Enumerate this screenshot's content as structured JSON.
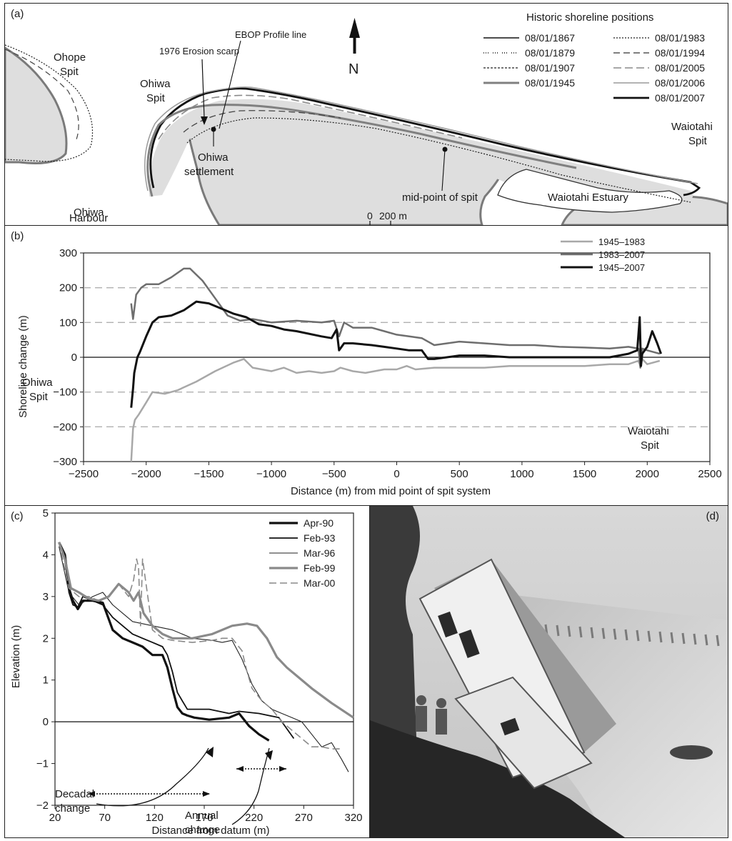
{
  "panel_a": {
    "label": "(a)",
    "legend_title": "Historic shoreline positions",
    "legend_items": [
      {
        "date": "08/01/1867",
        "style": "thin-solid"
      },
      {
        "date": "08/01/1879",
        "style": "dash-dot-dot"
      },
      {
        "date": "08/01/1907",
        "style": "fine-dashed"
      },
      {
        "date": "08/01/1945",
        "style": "thick-grey"
      },
      {
        "date": "08/01/1983",
        "style": "dotted"
      },
      {
        "date": "08/01/1994",
        "style": "long-dash"
      },
      {
        "date": "08/01/2005",
        "style": "grey-long-dash"
      },
      {
        "date": "08/01/2006",
        "style": "thin-grey"
      },
      {
        "date": "08/01/2007",
        "style": "thick-black"
      }
    ],
    "north_label": "N",
    "place_labels": {
      "ohope_1": "Ohope",
      "ohope_2": "Spit",
      "ohiwa_spit_1": "Ohiwa",
      "ohiwa_spit_2": "Spit",
      "ohiwa_settlement_1": "Ohiwa",
      "ohiwa_settlement_2": "settlement",
      "ohiwa_harbour_1": "Ohiwa",
      "ohiwa_harbour_2": "Harbour",
      "waiotahi_spit_1": "Waiotahi",
      "waiotahi_spit_2": "Spit",
      "waiotahi_estuary": "Waiotahi Estuary",
      "erosion_scarp": "1976 Erosion scarp",
      "ebop_profile": "EBOP Profile line",
      "mid_point": "mid-point of spit"
    },
    "scale_bar": {
      "zero": "0",
      "label": "200 m"
    }
  },
  "panel_b": {
    "label": "(b)",
    "annot_ohiwa_1": "Ohiwa",
    "annot_ohiwa_2": "Spit",
    "annot_waiotahi_1": "Waiotahi",
    "annot_waiotahi_2": "Spit"
  },
  "panel_c": {
    "label": "(c)",
    "annot_decadal_1": "Decadal",
    "annot_decadal_2": "change",
    "annot_annual_1": "Annual",
    "annot_annual_2": "change"
  },
  "panel_d": {
    "label": "(d)"
  },
  "chart_data": [
    {
      "type": "line",
      "xlabel": "Distance (m) from mid point of spit system",
      "ylabel": "Shoreline change (m)",
      "xlim": [
        -2500,
        2500
      ],
      "ylim": [
        -300,
        300
      ],
      "xticks": [
        -2500,
        -2000,
        -1500,
        -1000,
        -500,
        0,
        500,
        1000,
        1500,
        2000,
        2500
      ],
      "yticks": [
        -300,
        -200,
        -100,
        0,
        100,
        200,
        300
      ],
      "dashed_gridlines_y": [
        -200,
        -100,
        100,
        200
      ],
      "legend_position": "top-right",
      "series": [
        {
          "name": "1945–1983",
          "color": "#a8a8a8",
          "width": 2.5,
          "x": [
            -2120,
            -2105,
            -2090,
            -2060,
            -2000,
            -1950,
            -1850,
            -1750,
            -1600,
            -1450,
            -1300,
            -1220,
            -1150,
            -1000,
            -900,
            -800,
            -700,
            -600,
            -500,
            -450,
            -350,
            -250,
            -100,
            0,
            80,
            150,
            300,
            500,
            700,
            900,
            1100,
            1300,
            1500,
            1700,
            1850,
            1930,
            1945,
            1960,
            2000,
            2050,
            2100
          ],
          "y": [
            -300,
            -205,
            -180,
            -165,
            -130,
            -100,
            -105,
            -95,
            -70,
            -40,
            -15,
            -5,
            -30,
            -40,
            -30,
            -45,
            -40,
            -45,
            -40,
            -30,
            -40,
            -45,
            -35,
            -35,
            -25,
            -35,
            -30,
            -30,
            -30,
            -25,
            -25,
            -25,
            -25,
            -20,
            -20,
            -10,
            -25,
            -5,
            -20,
            -15,
            -10
          ]
        },
        {
          "name": "1983–2007",
          "color": "#6e6e6e",
          "width": 2.5,
          "x": [
            -2120,
            -2105,
            -2080,
            -2040,
            -2000,
            -1900,
            -1800,
            -1700,
            -1650,
            -1550,
            -1450,
            -1350,
            -1250,
            -1150,
            -1000,
            -800,
            -600,
            -500,
            -460,
            -420,
            -350,
            -200,
            -100,
            0,
            100,
            200,
            300,
            500,
            700,
            900,
            1100,
            1300,
            1500,
            1700,
            1850,
            1930,
            1945,
            1960,
            2000,
            2050,
            2100
          ],
          "y": [
            155,
            110,
            180,
            200,
            210,
            210,
            230,
            255,
            255,
            220,
            170,
            120,
            105,
            110,
            100,
            105,
            100,
            105,
            60,
            100,
            85,
            85,
            75,
            65,
            60,
            55,
            35,
            45,
            40,
            35,
            35,
            30,
            28,
            25,
            30,
            25,
            -30,
            25,
            20,
            15,
            10
          ]
        },
        {
          "name": "1945–2007",
          "color": "#111111",
          "width": 3,
          "x": [
            -2120,
            -2105,
            -2095,
            -2070,
            -2050,
            -2000,
            -1950,
            -1900,
            -1800,
            -1700,
            -1600,
            -1500,
            -1400,
            -1300,
            -1200,
            -1100,
            -1000,
            -900,
            -800,
            -600,
            -520,
            -480,
            -460,
            -420,
            -350,
            -200,
            -100,
            0,
            100,
            200,
            250,
            300,
            500,
            700,
            900,
            1100,
            1300,
            1500,
            1700,
            1850,
            1920,
            1940,
            1950,
            1960,
            2000,
            2040,
            2080,
            2110
          ],
          "y": [
            -145,
            -90,
            -45,
            0,
            15,
            60,
            100,
            115,
            120,
            135,
            160,
            155,
            140,
            125,
            115,
            95,
            90,
            80,
            75,
            60,
            55,
            80,
            20,
            40,
            40,
            35,
            30,
            25,
            20,
            20,
            -5,
            -5,
            5,
            5,
            0,
            0,
            0,
            0,
            0,
            10,
            20,
            115,
            -25,
            10,
            30,
            75,
            40,
            10
          ]
        }
      ],
      "annotations": [
        "Ohiwa Spit",
        "Waiotahi Spit"
      ]
    },
    {
      "type": "line",
      "xlabel": "Distance from datum (m)",
      "ylabel": "Elevation (m)",
      "xlim": [
        20,
        320
      ],
      "ylim": [
        -2,
        5
      ],
      "xticks": [
        20,
        70,
        120,
        170,
        220,
        270,
        320
      ],
      "yticks": [
        -2,
        -1,
        0,
        1,
        2,
        3,
        4,
        5
      ],
      "legend_position": "top-right",
      "series": [
        {
          "name": "Apr-90",
          "color": "#111111",
          "width": 3.2,
          "dash": "",
          "x": [
            24,
            30,
            34,
            38,
            43,
            48,
            58,
            68,
            78,
            88,
            98,
            108,
            118,
            128,
            133,
            138,
            143,
            148,
            153,
            160,
            175,
            195,
            205,
            215,
            225,
            235
          ],
          "y": [
            4.3,
            4.0,
            3.2,
            2.9,
            2.7,
            2.9,
            2.9,
            2.85,
            2.2,
            2.0,
            1.9,
            1.8,
            1.6,
            1.6,
            1.3,
            0.8,
            0.35,
            0.2,
            0.15,
            0.1,
            0.05,
            0.1,
            0.2,
            -0.1,
            -0.3,
            -0.45
          ]
        },
        {
          "name": "Feb-93",
          "color": "#111111",
          "width": 1.8,
          "dash": "",
          "x": [
            24,
            30,
            34,
            38,
            43,
            48,
            58,
            68,
            78,
            88,
            98,
            108,
            118,
            128,
            133,
            138,
            143,
            148,
            153,
            160,
            175,
            195,
            205,
            225,
            245,
            260
          ],
          "y": [
            4.3,
            4.0,
            3.1,
            2.8,
            2.75,
            3.0,
            2.9,
            2.8,
            2.5,
            2.3,
            2.1,
            2.0,
            1.9,
            1.8,
            1.6,
            1.2,
            0.7,
            0.5,
            0.3,
            0.3,
            0.3,
            0.2,
            0.25,
            0.2,
            0.1,
            -0.4
          ]
        },
        {
          "name": "Mar-96",
          "color": "#222222",
          "width": 1.1,
          "dash": "",
          "x": [
            24,
            34,
            44,
            58,
            68,
            78,
            88,
            98,
            118,
            138,
            158,
            178,
            188,
            198,
            208,
            218,
            228,
            238,
            248,
            258,
            268,
            278,
            288,
            298,
            308,
            315
          ],
          "y": [
            4.2,
            3.1,
            2.8,
            3.0,
            3.1,
            2.8,
            2.6,
            2.4,
            2.3,
            2.2,
            2.0,
            1.95,
            1.9,
            1.95,
            1.5,
            0.9,
            0.5,
            0.3,
            0.2,
            0.1,
            0.0,
            -0.3,
            -0.6,
            -0.5,
            -0.9,
            -1.2
          ]
        },
        {
          "name": "Feb-99",
          "color": "#8a8a8a",
          "width": 3.2,
          "dash": "",
          "x": [
            24,
            30,
            36,
            44,
            54,
            64,
            74,
            84,
            94,
            99,
            104,
            109,
            118,
            128,
            138,
            158,
            178,
            198,
            213,
            223,
            233,
            243,
            253,
            263,
            278,
            298,
            320
          ],
          "y": [
            4.3,
            3.9,
            3.2,
            3.1,
            2.95,
            2.9,
            3.0,
            3.3,
            3.1,
            2.9,
            3.1,
            2.6,
            2.3,
            2.1,
            2.0,
            2.0,
            2.1,
            2.3,
            2.35,
            2.3,
            2.0,
            1.55,
            1.3,
            1.1,
            0.8,
            0.45,
            0.1
          ]
        },
        {
          "name": "Mar-00",
          "color": "#8a8a8a",
          "width": 1.6,
          "dash": "10,5",
          "x": [
            24,
            34,
            44,
            54,
            64,
            74,
            84,
            94,
            99,
            102,
            104,
            106,
            108,
            118,
            128,
            138,
            158,
            178,
            188,
            198,
            208,
            213,
            218,
            228,
            238,
            248,
            258,
            268,
            278,
            288,
            298,
            308
          ],
          "y": [
            4.3,
            3.2,
            3.0,
            3.0,
            2.9,
            3.0,
            3.3,
            3.0,
            3.4,
            3.9,
            3.7,
            2.3,
            3.9,
            2.2,
            2.0,
            1.95,
            1.9,
            1.95,
            2.0,
            2.0,
            1.7,
            1.2,
            0.8,
            0.5,
            0.3,
            0.0,
            -0.2,
            -0.4,
            -0.6,
            -0.6,
            -0.65,
            -0.65
          ]
        }
      ],
      "annotations": [
        "Decadal change",
        "Annual change"
      ]
    }
  ]
}
